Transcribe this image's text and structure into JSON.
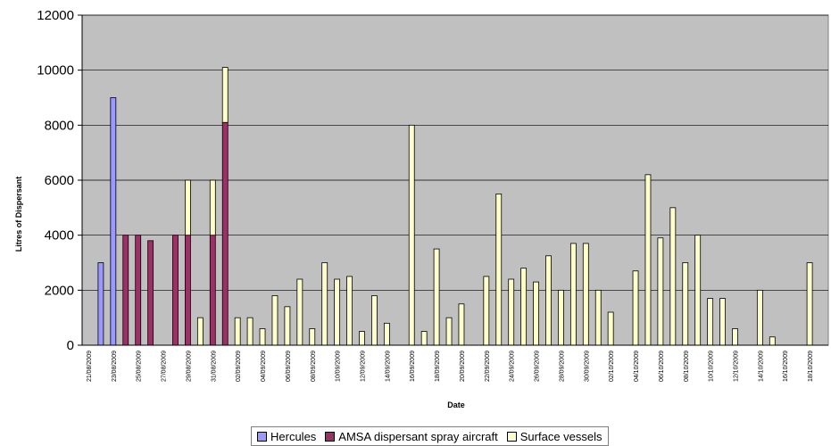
{
  "chart_data": {
    "type": "bar",
    "stacked": true,
    "title": "",
    "xlabel": "Date",
    "ylabel": "Litres of Dispersant",
    "ylim": [
      0,
      12000
    ],
    "yticks": [
      0,
      2000,
      4000,
      6000,
      8000,
      10000,
      12000
    ],
    "grid": true,
    "legend_position": "bottom",
    "plot_background": "#c0c0c0",
    "x_tick_labels": [
      "21/08/2009",
      "23/08/2009",
      "25/08/2009",
      "27/08/2009",
      "29/08/2009",
      "31/08/2009",
      "02/09/2009",
      "04/09/2009",
      "06/09/2009",
      "08/09/2009",
      "10/09/2009",
      "12/09/2009",
      "14/09/2009",
      "16/09/2009",
      "18/09/2009",
      "20/09/2009",
      "22/09/2009",
      "24/09/2009",
      "26/09/2009",
      "28/09/2009",
      "30/09/2009",
      "02/10/2009",
      "04/10/2009",
      "06/10/2009",
      "08/10/2009",
      "10/10/2009",
      "12/10/2009",
      "14/10/2009",
      "16/10/2009",
      "18/10/2009"
    ],
    "series": [
      {
        "name": "Hercules",
        "color": "#9999ff",
        "values": [
          0,
          3000,
          9000,
          0,
          0,
          0,
          0,
          0,
          0,
          0,
          0,
          0,
          0,
          0,
          0,
          0,
          0,
          0,
          0,
          0,
          0,
          0,
          0,
          0,
          0,
          0,
          0,
          0,
          0,
          0,
          0,
          0,
          0,
          0,
          0,
          0,
          0,
          0,
          0,
          0,
          0,
          0,
          0,
          0,
          0,
          0,
          0,
          0,
          0,
          0,
          0,
          0,
          0,
          0,
          0,
          0,
          0,
          0,
          0,
          0
        ]
      },
      {
        "name": "AMSA dispersant spray aircraft",
        "color": "#993366",
        "values": [
          0,
          0,
          0,
          4000,
          4000,
          3800,
          0,
          4000,
          4000,
          0,
          4000,
          8100,
          0,
          0,
          0,
          0,
          0,
          0,
          0,
          0,
          0,
          0,
          0,
          0,
          0,
          0,
          0,
          0,
          0,
          0,
          0,
          0,
          0,
          0,
          0,
          0,
          0,
          0,
          0,
          0,
          0,
          0,
          0,
          0,
          0,
          0,
          0,
          0,
          0,
          0,
          0,
          0,
          0,
          0,
          0,
          0,
          0,
          0,
          0,
          0
        ]
      },
      {
        "name": "Surface vessels",
        "color": "#ffffcc",
        "values": [
          0,
          0,
          0,
          0,
          0,
          0,
          0,
          0,
          2000,
          1000,
          2000,
          2000,
          1000,
          1000,
          600,
          1800,
          1400,
          2400,
          600,
          3000,
          2400,
          2500,
          500,
          1800,
          800,
          0,
          8000,
          500,
          3500,
          1000,
          1500,
          0,
          2500,
          5500,
          2400,
          2800,
          2300,
          3250,
          2000,
          3700,
          3700,
          2000,
          1200,
          0,
          2700,
          6200,
          3900,
          5000,
          3000,
          4000,
          1700,
          1700,
          600,
          0,
          2000,
          300,
          0,
          0,
          3000,
          0
        ]
      }
    ]
  },
  "legend": {
    "items": [
      {
        "label": "Hercules",
        "color": "#9999ff"
      },
      {
        "label": "AMSA dispersant spray aircraft",
        "color": "#993366"
      },
      {
        "label": "Surface vessels",
        "color": "#ffffcc"
      }
    ]
  }
}
